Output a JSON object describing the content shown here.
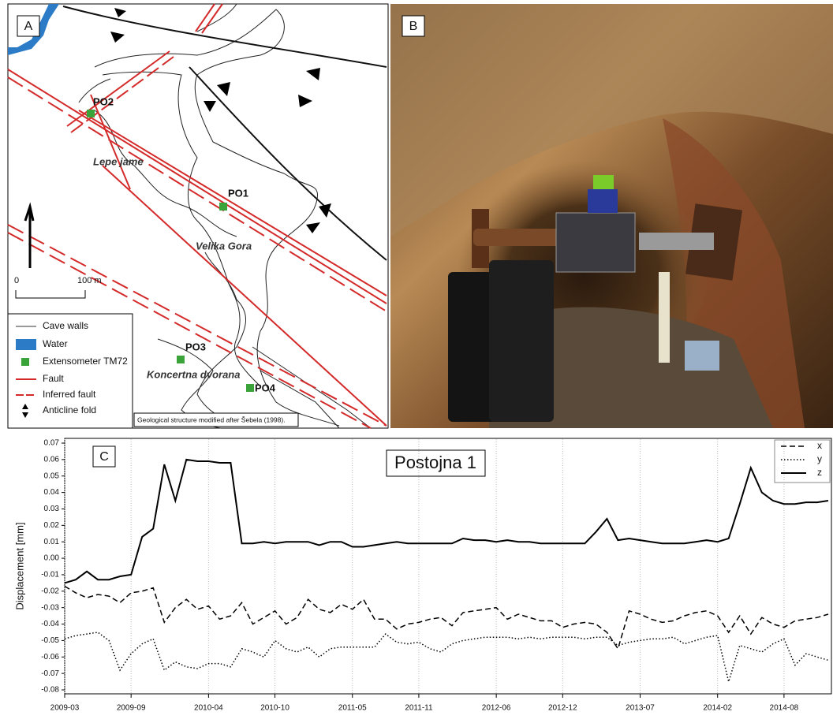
{
  "panel_a": {
    "label": "A",
    "sites": [
      "PO2",
      "PO1",
      "PO3",
      "PO4"
    ],
    "places": [
      "Lepe jame",
      "Velika Gora",
      "Koncertna dvorana"
    ],
    "scale": [
      "0",
      "100 m"
    ],
    "legend": [
      "Cave walls",
      "Water",
      "Extensometer TM72",
      "Fault",
      "Inferred fault",
      "Anticline fold"
    ],
    "note": "Geological structure modified after Šebela (1998)."
  },
  "panel_b": {
    "label": "B"
  },
  "chart_data": {
    "type": "line",
    "panel_label": "C",
    "title": "Postojna 1",
    "ylabel": "Displacement [mm]",
    "x": [
      "2009-03",
      "2009-04",
      "2009-05",
      "2009-06",
      "2009-07",
      "2009-08",
      "2009-09",
      "2009-10",
      "2009-11",
      "2009-12",
      "2010-01",
      "2010-02",
      "2010-03",
      "2010-04",
      "2010-05",
      "2010-06",
      "2010-07",
      "2010-08",
      "2010-09",
      "2010-10",
      "2010-11",
      "2010-12",
      "2011-01",
      "2011-02",
      "2011-03",
      "2011-04",
      "2011-05",
      "2011-06",
      "2011-07",
      "2011-08",
      "2011-09",
      "2011-10",
      "2011-11",
      "2011-12",
      "2012-01",
      "2012-02",
      "2012-03",
      "2012-04",
      "2012-05",
      "2012-06",
      "2012-07",
      "2012-08",
      "2012-09",
      "2012-10",
      "2012-11",
      "2012-12",
      "2013-01",
      "2013-02",
      "2013-03",
      "2013-04",
      "2013-05",
      "2013-06",
      "2013-07",
      "2013-08",
      "2013-09",
      "2013-10",
      "2013-11",
      "2013-12",
      "2014-01",
      "2014-02",
      "2014-03",
      "2014-04",
      "2014-05",
      "2014-06",
      "2014-07",
      "2014-08",
      "2014-09",
      "2014-10",
      "2014-11",
      "2014-12"
    ],
    "series": [
      {
        "name": "x",
        "color": "#000000",
        "style": "dashed",
        "values": [
          -0.017,
          -0.021,
          -0.024,
          -0.022,
          -0.023,
          -0.027,
          -0.021,
          -0.02,
          -0.018,
          -0.039,
          -0.03,
          -0.025,
          -0.031,
          -0.029,
          -0.037,
          -0.035,
          -0.027,
          -0.04,
          -0.036,
          -0.032,
          -0.04,
          -0.036,
          -0.025,
          -0.031,
          -0.033,
          -0.028,
          -0.031,
          -0.025,
          -0.037,
          -0.037,
          -0.043,
          -0.04,
          -0.039,
          -0.037,
          -0.036,
          -0.041,
          -0.033,
          -0.032,
          -0.031,
          -0.03,
          -0.037,
          -0.034,
          -0.036,
          -0.038,
          -0.038,
          -0.042,
          -0.04,
          -0.039,
          -0.04,
          -0.045,
          -0.055,
          -0.032,
          -0.034,
          -0.037,
          -0.039,
          -0.038,
          -0.035,
          -0.033,
          -0.032,
          -0.035,
          -0.045,
          -0.035,
          -0.046,
          -0.036,
          -0.04,
          -0.042,
          -0.038,
          -0.037,
          -0.036,
          -0.034
        ]
      },
      {
        "name": "y",
        "color": "#000000",
        "style": "dotted",
        "values": [
          -0.049,
          -0.047,
          -0.046,
          -0.045,
          -0.05,
          -0.068,
          -0.058,
          -0.052,
          -0.049,
          -0.068,
          -0.063,
          -0.066,
          -0.067,
          -0.064,
          -0.064,
          -0.066,
          -0.055,
          -0.057,
          -0.06,
          -0.05,
          -0.055,
          -0.057,
          -0.054,
          -0.06,
          -0.055,
          -0.054,
          -0.054,
          -0.054,
          -0.054,
          -0.046,
          -0.051,
          -0.052,
          -0.051,
          -0.055,
          -0.057,
          -0.052,
          -0.05,
          -0.049,
          -0.048,
          -0.048,
          -0.048,
          -0.049,
          -0.048,
          -0.049,
          -0.048,
          -0.048,
          -0.048,
          -0.049,
          -0.048,
          -0.048,
          -0.053,
          -0.051,
          -0.05,
          -0.049,
          -0.049,
          -0.048,
          -0.052,
          -0.05,
          -0.048,
          -0.047,
          -0.075,
          -0.053,
          -0.055,
          -0.057,
          -0.052,
          -0.049,
          -0.065,
          -0.058,
          -0.06,
          -0.062
        ]
      },
      {
        "name": "z",
        "color": "#000000",
        "style": "solid",
        "values": [
          -0.015,
          -0.013,
          -0.008,
          -0.013,
          -0.013,
          -0.011,
          -0.01,
          0.013,
          0.018,
          0.057,
          0.035,
          0.06,
          0.059,
          0.059,
          0.058,
          0.058,
          0.009,
          0.009,
          0.01,
          0.009,
          0.01,
          0.01,
          0.01,
          0.008,
          0.01,
          0.01,
          0.007,
          0.007,
          0.008,
          0.009,
          0.01,
          0.009,
          0.009,
          0.009,
          0.009,
          0.009,
          0.012,
          0.011,
          0.011,
          0.01,
          0.011,
          0.01,
          0.01,
          0.009,
          0.009,
          0.009,
          0.009,
          0.009,
          0.016,
          0.024,
          0.011,
          0.012,
          0.011,
          0.01,
          0.009,
          0.009,
          0.009,
          0.01,
          0.011,
          0.01,
          0.012,
          0.033,
          0.055,
          0.04,
          0.035,
          0.033,
          0.033,
          0.034,
          0.034,
          0.035
        ]
      }
    ],
    "xlim": [
      "2009-03",
      "2014-12"
    ],
    "xticks": [
      "2009-03",
      "2009-09",
      "2010-04",
      "2010-10",
      "2011-05",
      "2011-11",
      "2012-06",
      "2012-12",
      "2013-07",
      "2014-02",
      "2014-08"
    ],
    "ylim": [
      -0.08,
      0.07
    ],
    "yticks": [
      -0.08,
      -0.07,
      -0.06,
      -0.05,
      -0.04,
      -0.03,
      -0.02,
      -0.01,
      {
        "value": 0,
        "label": "0.00"
      },
      0.01,
      0.02,
      0.03,
      0.04,
      0.05,
      0.06,
      0.07
    ],
    "grid": true,
    "legend": "upper right"
  }
}
